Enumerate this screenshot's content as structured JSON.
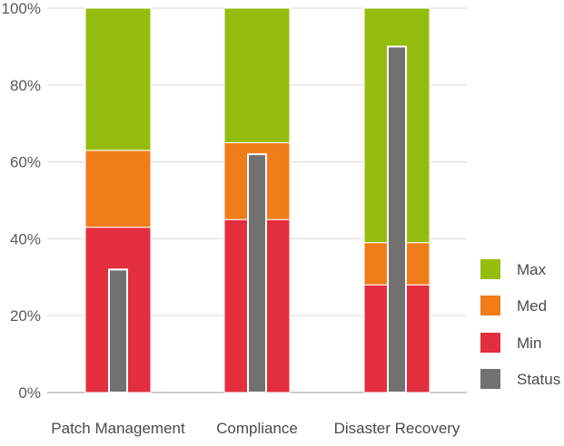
{
  "chart_data": {
    "type": "bar",
    "stacked": true,
    "categories": [
      "Patch Management",
      "Compliance",
      "Disaster Recovery"
    ],
    "series": [
      {
        "name": "Min",
        "values": [
          43,
          45,
          28
        ],
        "color": "#e32e3e"
      },
      {
        "name": "Med",
        "values": [
          20,
          20,
          11
        ],
        "color": "#f07d1a"
      },
      {
        "name": "Max",
        "values": [
          37,
          35,
          61
        ],
        "color": "#95bd0e"
      }
    ],
    "overlay": {
      "name": "Status",
      "values": [
        32,
        62,
        90
      ],
      "color": "#717171"
    },
    "legend_order": [
      "Max",
      "Med",
      "Min",
      "Status"
    ],
    "y_ticks": [
      "0%",
      "20%",
      "40%",
      "60%",
      "80%",
      "100%"
    ],
    "ylim": [
      0,
      100
    ],
    "grid": true,
    "legend_position": "right"
  }
}
